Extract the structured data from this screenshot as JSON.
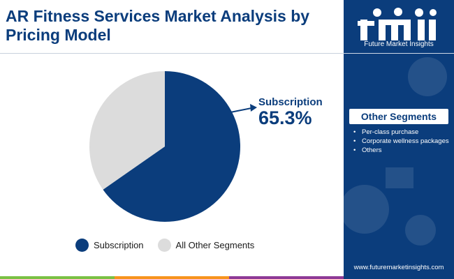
{
  "header": {
    "title": "AR Fitness Services Market Analysis by Pricing Model"
  },
  "chart_data": {
    "type": "pie",
    "title": "AR Fitness Services Market Analysis by Pricing Model",
    "slices": [
      {
        "label": "Subscription",
        "value": 65.3,
        "color": "#0b3d7c"
      },
      {
        "label": "All Other Segments",
        "value": 34.7,
        "color": "#dcdcdc"
      }
    ],
    "annotation": {
      "label": "Subscription",
      "value_text": "65.3%"
    },
    "legend_position": "bottom"
  },
  "legend": {
    "items": [
      {
        "label": "Subscription",
        "color": "#0b3d7c"
      },
      {
        "label": "All Other Segments",
        "color": "#dcdcdc"
      }
    ]
  },
  "sidebar": {
    "brand_caption": "Future Market Insights",
    "segments_heading": "Other Segments",
    "segments": [
      "Per-class purchase",
      "Corporate wellness packages",
      "Others"
    ],
    "website": "www.futuremarketinsights.com"
  },
  "colors": {
    "primary": "#0b3d7c",
    "secondary": "#dcdcdc",
    "bar_green": "#7ac143",
    "bar_orange": "#f7941d",
    "bar_purple": "#8e3a96"
  }
}
